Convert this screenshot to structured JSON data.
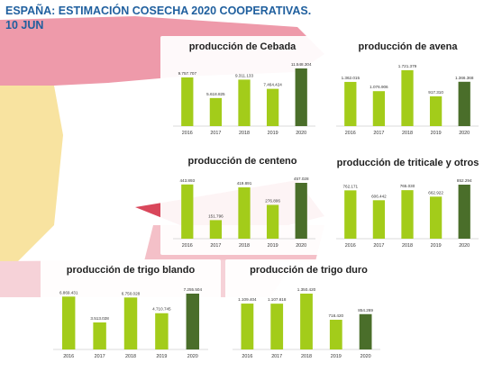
{
  "title_line1": "ESPAÑA: ESTIMACIÓN COSECHA 2020 COOPERATIVAS.",
  "title_line2": "10 JUN",
  "colors": {
    "bar": "#a3cc1a",
    "bar_highlight": "#4a6e2a",
    "title": "#1f5f9e",
    "map_pink": "#ee9aaa",
    "map_red": "#d9475b",
    "map_yellow": "#f8e3a0"
  },
  "chart_data": [
    {
      "type": "bar",
      "title": "producción de Cebada",
      "categories": [
        "2016",
        "2017",
        "2018",
        "2019",
        "2020"
      ],
      "values": [
        9757707,
        5618825,
        9311133,
        7464424,
        11548304
      ],
      "labels": [
        "9.757.707",
        "5.618.825",
        "9.311.133",
        "7.464.424",
        "11.548.304"
      ]
    },
    {
      "type": "bar",
      "title": "producción de avena",
      "categories": [
        "2016",
        "2017",
        "2018",
        "2019",
        "2020"
      ],
      "values": [
        1362015,
        1076906,
        1721379,
        917310,
        1366368
      ],
      "labels": [
        "1.362.015",
        "1.076.906",
        "1.721.379",
        "917.310",
        "1.366.368"
      ]
    },
    {
      "type": "bar",
      "title": "producción de centeno",
      "categories": [
        "2016",
        "2017",
        "2018",
        "2019",
        "2020"
      ],
      "values": [
        443893,
        151796,
        419891,
        276806,
        457028
      ],
      "labels": [
        "443.893",
        "151.796",
        "419.891",
        "276.806",
        "457.028"
      ]
    },
    {
      "type": "bar",
      "title": "producción de triticale y otros",
      "categories": [
        "2016",
        "2017",
        "2018",
        "2019",
        "2020"
      ],
      "values": [
        762171,
        606442,
        765030,
        662922,
        852294
      ],
      "labels": [
        "762.171",
        "606.442",
        "765.030",
        "662.922",
        "852.294"
      ]
    },
    {
      "type": "bar",
      "title": "producción de trigo blando",
      "categories": [
        "2016",
        "2017",
        "2018",
        "2019",
        "2020"
      ],
      "values": [
        6869431,
        3513028,
        6750028,
        4710745,
        7255504
      ],
      "labels": [
        "6.869.431",
        "3.513.028",
        "6.750.028",
        "4.710.745",
        "7.255.504"
      ]
    },
    {
      "type": "bar",
      "title": "producción de trigo duro",
      "categories": [
        "2016",
        "2017",
        "2018",
        "2019",
        "2020"
      ],
      "values": [
        1109404,
        1107618,
        1350420,
        718420,
        854269
      ],
      "labels": [
        "1.109.404",
        "1.107.618",
        "1.350.420",
        "718.420",
        "854.269"
      ]
    }
  ]
}
